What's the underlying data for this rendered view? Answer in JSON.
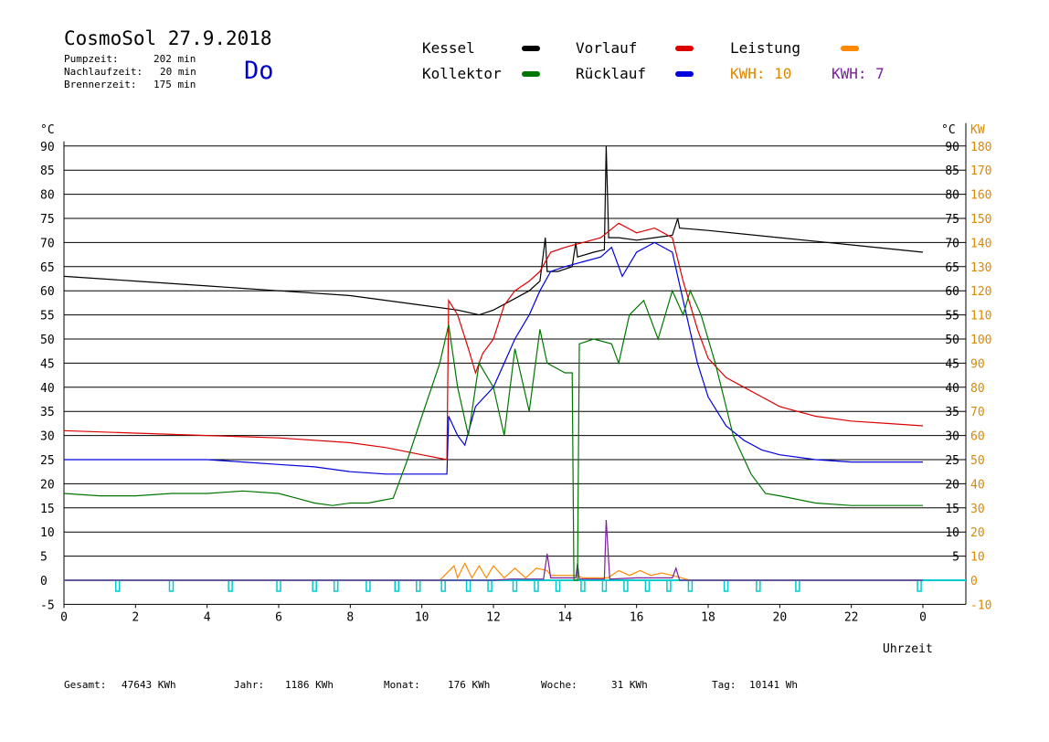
{
  "header": {
    "title": "CosmoSol 27.9.2018",
    "pump_label": "Pumpzeit:",
    "pump_value": "202 min",
    "after_label": "Nachlaufzeit:",
    "after_value": "20 min",
    "burner_label": "Brennerzeit:",
    "burner_value": "175 min",
    "day": "Do"
  },
  "legend": {
    "kessel": "Kessel",
    "vorlauf": "Vorlauf",
    "leistung": "Leistung",
    "kollektor": "Kollektor",
    "ruecklauf": "Rücklauf",
    "kwh1": "KWH: 10",
    "kwh2": "KWH: 7"
  },
  "colors": {
    "kessel": "#000000",
    "vorlauf": "#dd0000",
    "leistung": "#ff8800",
    "kollektor": "#007700",
    "ruecklauf": "#0000dd",
    "kwh2": "#7a1f9a",
    "pump": "#00cccc",
    "right_axis": "#dd8800"
  },
  "footer": {
    "gesamt_label": "Gesamt:",
    "gesamt_value": "47643 KWh",
    "jahr_label": "Jahr:",
    "jahr_value": "1186 KWh",
    "monat_label": "Monat:",
    "monat_value": "176 KWh",
    "woche_label": "Woche:",
    "woche_value": "31 KWh",
    "tag_label": "Tag:",
    "tag_value": "10141 Wh"
  },
  "chart_data": {
    "type": "line",
    "xlabel": "Uhrzeit",
    "xlim": [
      0,
      24
    ],
    "x_ticks": [
      "0",
      "2",
      "4",
      "6",
      "8",
      "10",
      "12",
      "14",
      "16",
      "18",
      "20",
      "22",
      "0"
    ],
    "y_left_unit": "°C",
    "y_left_ticks": [
      -5,
      0,
      5,
      10,
      15,
      20,
      25,
      30,
      35,
      40,
      45,
      50,
      55,
      60,
      65,
      70,
      75,
      80,
      85,
      90
    ],
    "y_right_temp_ticks": [
      5,
      10,
      15,
      20,
      25,
      30,
      35,
      40,
      45,
      50,
      55,
      60,
      65,
      70,
      75,
      80,
      85,
      90
    ],
    "y_right_unit": "°C",
    "y_right_power_unit": "KW",
    "y_right_power_ticks": [
      -10,
      0,
      10,
      20,
      30,
      40,
      50,
      60,
      70,
      80,
      90,
      100,
      110,
      120,
      130,
      140,
      150,
      160,
      170,
      180
    ],
    "ylim": [
      -5,
      90
    ],
    "grid": true,
    "series": [
      {
        "name": "Kessel",
        "color": "#000000",
        "points": [
          [
            0,
            63
          ],
          [
            2,
            62
          ],
          [
            4,
            61
          ],
          [
            6,
            60
          ],
          [
            8,
            59
          ],
          [
            10,
            57
          ],
          [
            11,
            56
          ],
          [
            11.6,
            55
          ],
          [
            12,
            56
          ],
          [
            12.5,
            58
          ],
          [
            13,
            60
          ],
          [
            13.3,
            62
          ],
          [
            13.45,
            71
          ],
          [
            13.5,
            64
          ],
          [
            13.8,
            64
          ],
          [
            14.2,
            65
          ],
          [
            14.3,
            70
          ],
          [
            14.35,
            67
          ],
          [
            14.8,
            68
          ],
          [
            15.1,
            68.5
          ],
          [
            15.15,
            90
          ],
          [
            15.22,
            71
          ],
          [
            15.5,
            71
          ],
          [
            16,
            70.5
          ],
          [
            16.5,
            71
          ],
          [
            17,
            71.5
          ],
          [
            17.15,
            75
          ],
          [
            17.2,
            73
          ],
          [
            18,
            72.5
          ],
          [
            20,
            71
          ],
          [
            22,
            69.5
          ],
          [
            24,
            68
          ]
        ]
      },
      {
        "name": "Vorlauf",
        "color": "#dd0000",
        "points": [
          [
            0,
            31
          ],
          [
            2,
            30.5
          ],
          [
            4,
            30
          ],
          [
            6,
            29.5
          ],
          [
            8,
            28.5
          ],
          [
            9,
            27.5
          ],
          [
            10,
            26
          ],
          [
            10.7,
            25
          ],
          [
            10.75,
            58
          ],
          [
            11,
            55
          ],
          [
            11.3,
            48
          ],
          [
            11.5,
            43
          ],
          [
            11.7,
            47
          ],
          [
            12,
            50
          ],
          [
            12.3,
            57
          ],
          [
            12.6,
            60
          ],
          [
            13,
            62
          ],
          [
            13.3,
            64
          ],
          [
            13.6,
            68
          ],
          [
            14,
            69
          ],
          [
            14.5,
            70
          ],
          [
            15,
            71
          ],
          [
            15.5,
            74
          ],
          [
            16,
            72
          ],
          [
            16.5,
            73
          ],
          [
            17,
            71
          ],
          [
            17.3,
            62
          ],
          [
            17.7,
            52
          ],
          [
            18,
            46
          ],
          [
            18.5,
            42
          ],
          [
            19,
            40
          ],
          [
            19.5,
            38
          ],
          [
            20,
            36
          ],
          [
            21,
            34
          ],
          [
            22,
            33
          ],
          [
            23,
            32.5
          ],
          [
            24,
            32
          ]
        ]
      },
      {
        "name": "Rücklauf",
        "color": "#0000dd",
        "points": [
          [
            0,
            25
          ],
          [
            2,
            25
          ],
          [
            4,
            25
          ],
          [
            5,
            24.5
          ],
          [
            6,
            24
          ],
          [
            7,
            23.5
          ],
          [
            8,
            22.5
          ],
          [
            9,
            22
          ],
          [
            10,
            22
          ],
          [
            10.7,
            22
          ],
          [
            10.75,
            34
          ],
          [
            11,
            30
          ],
          [
            11.2,
            28
          ],
          [
            11.5,
            36
          ],
          [
            12,
            40
          ],
          [
            12.3,
            45
          ],
          [
            12.6,
            50
          ],
          [
            13,
            55
          ],
          [
            13.3,
            60
          ],
          [
            13.6,
            64
          ],
          [
            14,
            65
          ],
          [
            14.5,
            66
          ],
          [
            15,
            67
          ],
          [
            15.3,
            69
          ],
          [
            15.6,
            63
          ],
          [
            16,
            68
          ],
          [
            16.5,
            70
          ],
          [
            17,
            68
          ],
          [
            17.3,
            58
          ],
          [
            17.7,
            45
          ],
          [
            18,
            38
          ],
          [
            18.5,
            32
          ],
          [
            19,
            29
          ],
          [
            19.5,
            27
          ],
          [
            20,
            26
          ],
          [
            21,
            25
          ],
          [
            22,
            24.5
          ],
          [
            24,
            24.5
          ]
        ]
      },
      {
        "name": "Kollektor",
        "color": "#007700",
        "points": [
          [
            0,
            18
          ],
          [
            1,
            17.5
          ],
          [
            2,
            17.5
          ],
          [
            3,
            18
          ],
          [
            4,
            18
          ],
          [
            5,
            18.5
          ],
          [
            6,
            18
          ],
          [
            6.5,
            17
          ],
          [
            7,
            16
          ],
          [
            7.5,
            15.5
          ],
          [
            8,
            16
          ],
          [
            8.5,
            16
          ],
          [
            9.2,
            17
          ],
          [
            9.6,
            25
          ],
          [
            10,
            34
          ],
          [
            10.5,
            45
          ],
          [
            10.75,
            53
          ],
          [
            11,
            40
          ],
          [
            11.3,
            30
          ],
          [
            11.6,
            45
          ],
          [
            12,
            40
          ],
          [
            12.3,
            30
          ],
          [
            12.6,
            48
          ],
          [
            13,
            35
          ],
          [
            13.3,
            52
          ],
          [
            13.5,
            45
          ],
          [
            14,
            43
          ],
          [
            14.2,
            43
          ],
          [
            14.25,
            0
          ],
          [
            14.35,
            0
          ],
          [
            14.4,
            49
          ],
          [
            14.8,
            50
          ],
          [
            15.3,
            49
          ],
          [
            15.5,
            45
          ],
          [
            15.8,
            55
          ],
          [
            16.2,
            58
          ],
          [
            16.6,
            50
          ],
          [
            17,
            60
          ],
          [
            17.3,
            55
          ],
          [
            17.5,
            60
          ],
          [
            17.8,
            55
          ],
          [
            18.2,
            45
          ],
          [
            18.7,
            30
          ],
          [
            19.2,
            22
          ],
          [
            19.6,
            18
          ],
          [
            20,
            17.5
          ],
          [
            21,
            16
          ],
          [
            22,
            15.5
          ],
          [
            23,
            15.5
          ],
          [
            24,
            15.5
          ]
        ]
      }
    ],
    "power": [
      {
        "name": "Leistung",
        "color": "#ff8800",
        "points": [
          [
            0,
            0
          ],
          [
            10.5,
            0
          ],
          [
            10.9,
            6
          ],
          [
            11,
            1
          ],
          [
            11.2,
            7
          ],
          [
            11.4,
            1
          ],
          [
            11.6,
            6
          ],
          [
            11.8,
            1
          ],
          [
            12,
            6
          ],
          [
            12.3,
            1
          ],
          [
            12.6,
            5
          ],
          [
            12.9,
            1
          ],
          [
            13.2,
            5
          ],
          [
            13.5,
            4
          ],
          [
            13.6,
            2
          ],
          [
            14.3,
            2
          ],
          [
            14.5,
            1
          ],
          [
            15.2,
            1
          ],
          [
            15.5,
            4
          ],
          [
            15.8,
            2
          ],
          [
            16.1,
            4
          ],
          [
            16.4,
            2
          ],
          [
            16.7,
            3
          ],
          [
            17,
            2
          ],
          [
            17.5,
            0
          ],
          [
            24,
            0
          ]
        ]
      },
      {
        "name": "KWH: 7",
        "color": "#7a1f9a",
        "points": [
          [
            0,
            0
          ],
          [
            12,
            0
          ],
          [
            12.5,
            0.5
          ],
          [
            13.4,
            0.5
          ],
          [
            13.5,
            11
          ],
          [
            13.6,
            1
          ],
          [
            14.3,
            1
          ],
          [
            14.35,
            7
          ],
          [
            14.4,
            0.5
          ],
          [
            15.1,
            0.5
          ],
          [
            15.15,
            25
          ],
          [
            15.25,
            0.5
          ],
          [
            16,
            1
          ],
          [
            17,
            1
          ],
          [
            17.1,
            5
          ],
          [
            17.2,
            0
          ],
          [
            24,
            0
          ]
        ]
      }
    ],
    "pump_indicator": {
      "name": "Pumpe",
      "color": "#00cccc",
      "level": -1,
      "pulses": [
        1.5,
        3.0,
        4.65,
        6.0,
        7.0,
        7.6,
        8.5,
        9.3,
        9.9,
        10.6,
        11.3,
        11.9,
        12.6,
        13.2,
        13.8,
        14.5,
        15.1,
        15.7,
        16.3,
        16.9,
        17.5,
        18.5,
        19.4,
        20.5,
        23.9
      ]
    }
  }
}
